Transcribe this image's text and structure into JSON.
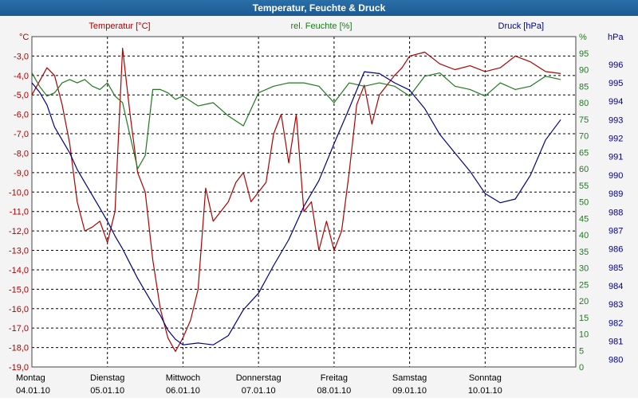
{
  "chart_data": {
    "type": "line",
    "title": "Temperatur, Feuchte & Druck",
    "x_labels": [
      {
        "day": "Montag",
        "date": "04.01.10"
      },
      {
        "day": "Dienstag",
        "date": "05.01.10"
      },
      {
        "day": "Mittwoch",
        "date": "06.01.10"
      },
      {
        "day": "Donnerstag",
        "date": "07.01.10"
      },
      {
        "day": "Freitag",
        "date": "08.01.10"
      },
      {
        "day": "Samstag",
        "date": "09.01.10"
      },
      {
        "day": "Sonntag",
        "date": "10.01.10"
      }
    ],
    "x_range": [
      0,
      7.2
    ],
    "axes": {
      "temperature": {
        "label": "Temperatur [°C]",
        "unit": "°C",
        "color": "#b00000",
        "range": [
          -19.0,
          -2.0
        ],
        "ticks": [
          "-3,0",
          "-4,0",
          "-5,0",
          "-6,0",
          "-7,0",
          "-8,0",
          "-9,0",
          "-10,0",
          "-11,0",
          "-12,0",
          "-13,0",
          "-14,0",
          "-15,0",
          "-16,0",
          "-17,0",
          "-18,0",
          "-19,0"
        ]
      },
      "humidity": {
        "label": "rel. Feuchte [%]",
        "unit": "%",
        "color": "#1f7a1f",
        "range": [
          0,
          100
        ],
        "ticks": [
          "95",
          "90",
          "85",
          "80",
          "75",
          "70",
          "65",
          "60",
          "55",
          "50",
          "45",
          "40",
          "35",
          "30",
          "25",
          "20",
          "15",
          "10",
          "5",
          "0"
        ]
      },
      "pressure": {
        "label": "Druck [hPa]",
        "unit": "hPa",
        "color": "#00008b",
        "range": [
          979.6,
          997.5
        ],
        "ticks": [
          "996",
          "995",
          "994",
          "993",
          "992",
          "991",
          "990",
          "989",
          "988",
          "987",
          "986",
          "985",
          "984",
          "983",
          "982",
          "981",
          "980"
        ]
      }
    },
    "series": [
      {
        "name": "Temperatur",
        "axis": "temperature",
        "color": "#b00000",
        "x": [
          0.0,
          0.1,
          0.2,
          0.3,
          0.4,
          0.5,
          0.6,
          0.7,
          0.8,
          0.9,
          1.0,
          1.1,
          1.2,
          1.3,
          1.4,
          1.5,
          1.6,
          1.7,
          1.8,
          1.9,
          2.0,
          2.1,
          2.2,
          2.3,
          2.4,
          2.5,
          2.6,
          2.7,
          2.8,
          2.9,
          3.0,
          3.1,
          3.2,
          3.3,
          3.4,
          3.5,
          3.6,
          3.7,
          3.8,
          3.9,
          4.0,
          4.1,
          4.2,
          4.3,
          4.4,
          4.5,
          4.6,
          4.7,
          4.8,
          4.9,
          5.0,
          5.2,
          5.4,
          5.6,
          5.8,
          6.0,
          6.2,
          6.4,
          6.6,
          6.8,
          7.0
        ],
        "values": [
          -5.0,
          -4.3,
          -3.6,
          -4.0,
          -5.5,
          -7.5,
          -10.5,
          -12.0,
          -11.8,
          -11.5,
          -12.6,
          -11.0,
          -2.6,
          -6.0,
          -9.0,
          -10.0,
          -13.5,
          -16.0,
          -17.5,
          -18.2,
          -17.5,
          -16.6,
          -15.0,
          -9.8,
          -11.5,
          -11.0,
          -10.5,
          -9.5,
          -9.0,
          -10.5,
          -10.0,
          -9.5,
          -7.0,
          -6.0,
          -8.5,
          -6.0,
          -11.0,
          -10.5,
          -13.0,
          -11.5,
          -13.0,
          -12.0,
          -9.0,
          -5.5,
          -4.5,
          -6.5,
          -5.0,
          -4.5,
          -4.0,
          -3.6,
          -3.0,
          -2.8,
          -3.4,
          -3.7,
          -3.5,
          -3.8,
          -3.6,
          -3.0,
          -3.3,
          -3.8,
          -3.9
        ]
      },
      {
        "name": "rel. Feuchte",
        "axis": "humidity",
        "color": "#1f7a1f",
        "x": [
          0.0,
          0.1,
          0.2,
          0.3,
          0.4,
          0.5,
          0.6,
          0.7,
          0.8,
          0.9,
          1.0,
          1.1,
          1.2,
          1.3,
          1.4,
          1.5,
          1.6,
          1.7,
          1.8,
          1.9,
          2.0,
          2.2,
          2.4,
          2.6,
          2.8,
          3.0,
          3.2,
          3.4,
          3.6,
          3.8,
          4.0,
          4.2,
          4.4,
          4.6,
          4.8,
          5.0,
          5.2,
          5.4,
          5.6,
          5.8,
          6.0,
          6.2,
          6.4,
          6.6,
          6.8,
          7.0
        ],
        "values": [
          89,
          85,
          82,
          83,
          86,
          87,
          86,
          87,
          85,
          84,
          86,
          82,
          80,
          70,
          60,
          64,
          84,
          84,
          83,
          81,
          82,
          79,
          80,
          76,
          73,
          83,
          85,
          86,
          86,
          85,
          80,
          86,
          85,
          86,
          85,
          82,
          88,
          89,
          85,
          84,
          82,
          86,
          84,
          85,
          88,
          87
        ]
      },
      {
        "name": "Druck",
        "axis": "pressure",
        "color": "#00008b",
        "x": [
          0.0,
          0.1,
          0.2,
          0.3,
          0.4,
          0.5,
          0.6,
          0.7,
          0.8,
          0.9,
          1.0,
          1.1,
          1.2,
          1.3,
          1.4,
          1.5,
          1.6,
          1.7,
          1.8,
          1.9,
          2.0,
          2.2,
          2.4,
          2.6,
          2.8,
          3.0,
          3.2,
          3.4,
          3.6,
          3.8,
          4.0,
          4.2,
          4.4,
          4.6,
          4.8,
          5.0,
          5.2,
          5.4,
          5.6,
          5.8,
          6.0,
          6.2,
          6.4,
          6.6,
          6.8,
          7.0
        ],
        "values": [
          995.0,
          994.5,
          993.8,
          992.6,
          991.9,
          991.2,
          990.3,
          989.6,
          988.9,
          988.2,
          987.5,
          986.7,
          986.0,
          985.2,
          984.4,
          983.7,
          983.0,
          982.4,
          981.6,
          981.1,
          980.8,
          980.9,
          980.8,
          981.3,
          982.7,
          983.6,
          985.1,
          986.5,
          988.3,
          989.7,
          991.7,
          993.6,
          995.6,
          995.5,
          995.0,
          994.6,
          993.6,
          992.2,
          991.2,
          990.2,
          989.0,
          988.5,
          988.7,
          990.0,
          991.9,
          993.0
        ]
      }
    ],
    "grid": true
  }
}
